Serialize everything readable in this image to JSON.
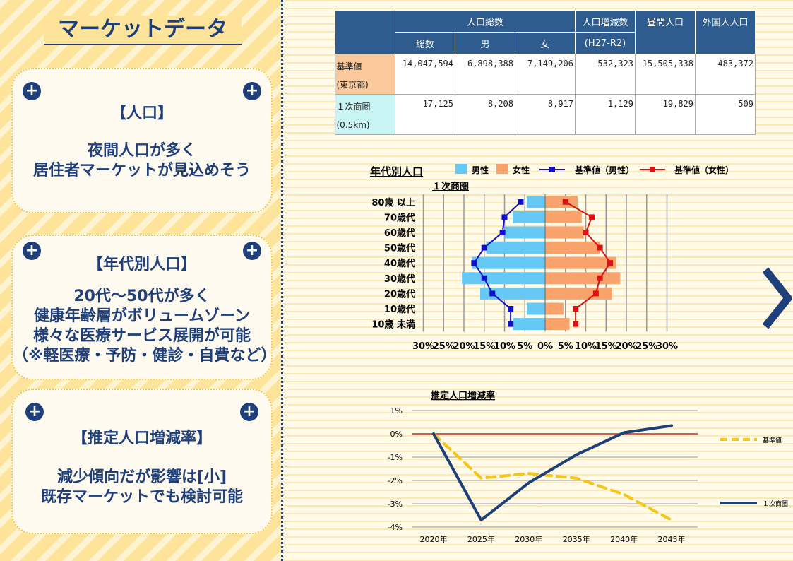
{
  "page": {
    "title": "マーケットデータ",
    "cards": [
      {
        "heading": "【人口】",
        "lines": [
          "夜間人口が多く",
          "居住者マーケットが見込めそう"
        ]
      },
      {
        "heading": "【年代別人口】",
        "lines": [
          "20代～50代が多く",
          "健康年齢層がボリュームゾーン",
          "様々な医療サービス展開が可能",
          "（※軽医療・予防・健診・自費など）"
        ]
      },
      {
        "heading": "【推定人口増減率】",
        "lines": [
          "減少傾向だが影響は[小]",
          "既存マーケットでも検討可能"
        ]
      }
    ],
    "next_arrow_icon": "chevron-right-icon"
  },
  "table": {
    "header_top": [
      "人口総数",
      "人口増減数",
      "昼間人口",
      "外国人人口"
    ],
    "header_sub": [
      "総数",
      "男",
      "女",
      "(H27-R2)"
    ],
    "rows": [
      {
        "label1": "基準値",
        "label2": "(東京都)",
        "label_color": "#f9c89b",
        "values": [
          "14,047,594",
          "6,898,388",
          "7,149,206",
          "532,323",
          "15,505,338",
          "483,372"
        ]
      },
      {
        "label1": "１次商圏",
        "label2": "(0.5km)",
        "label_color": "#c9f4f4",
        "values": [
          "17,125",
          "8,208",
          "8,917",
          "1,129",
          "19,829",
          "509"
        ]
      }
    ]
  },
  "chart_data": [
    {
      "type": "bar",
      "orientation": "horizontal-pyramid",
      "title": "年代別人口",
      "subtitle": "１次商圏",
      "categories": [
        "80歳 以上",
        "70歳代",
        "60歳代",
        "50歳代",
        "40歳代",
        "30歳代",
        "20歳代",
        "10歳代",
        "10歳 未満"
      ],
      "series": [
        {
          "name": "男性",
          "type": "bar",
          "color": "#66c8f5",
          "values": [
            -4.5,
            -8.0,
            -10.0,
            -14.5,
            -18.0,
            -20.5,
            -16.0,
            -4.5,
            -8.0
          ]
        },
        {
          "name": "女性",
          "type": "bar",
          "color": "#f9a26c",
          "values": [
            8.0,
            9.0,
            9.5,
            13.5,
            17.5,
            18.5,
            16.5,
            4.5,
            6.0
          ]
        },
        {
          "name": "基準値（男性）",
          "type": "line",
          "color": "#1010cc",
          "values": [
            -6.0,
            -10.0,
            -10.5,
            -15.0,
            -17.5,
            -15.0,
            -13.0,
            -8.5,
            -8.5
          ]
        },
        {
          "name": "基準値（女性）",
          "type": "line",
          "color": "#dd1111",
          "values": [
            5.0,
            11.5,
            10.0,
            13.5,
            16.0,
            13.5,
            12.5,
            7.5,
            7.5
          ]
        }
      ],
      "xticks": [
        "30%",
        "25%",
        "20%",
        "15%",
        "10%",
        "5%",
        "0%",
        "5%",
        "10%",
        "15%",
        "20%",
        "25%",
        "30%"
      ],
      "xlim": [
        -30,
        30
      ]
    },
    {
      "type": "line",
      "title": "推定人口増減率",
      "x": [
        "2020年",
        "2025年",
        "2030年",
        "2035年",
        "2040年",
        "2045年"
      ],
      "series": [
        {
          "name": "基準値",
          "color": "#f5c518",
          "dash": true,
          "values": [
            0.0,
            -1.9,
            -1.7,
            -1.9,
            -2.6,
            -3.7
          ]
        },
        {
          "name": "１次商圏",
          "color": "#1f3f7a",
          "dash": false,
          "values": [
            0.0,
            -3.7,
            -2.1,
            -0.9,
            0.05,
            0.35
          ]
        }
      ],
      "yticks": [
        "1%",
        "0%",
        "-1%",
        "-2%",
        "-3%",
        "-4%"
      ],
      "ylim": [
        -4,
        1
      ]
    }
  ]
}
